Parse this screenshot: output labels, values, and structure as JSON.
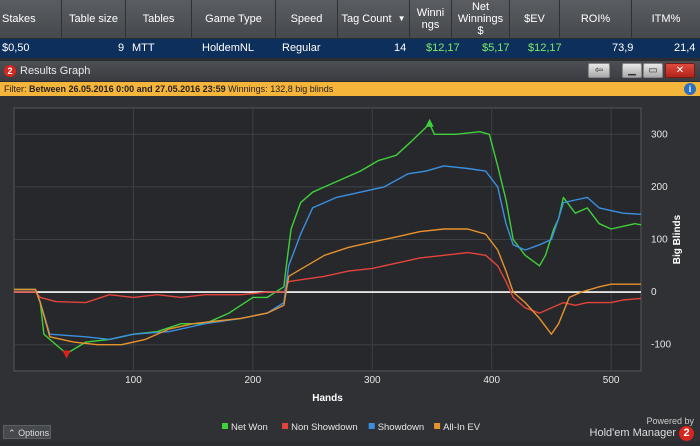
{
  "grid_header": {
    "columns": [
      {
        "label": "Stakes"
      },
      {
        "label": "Table size"
      },
      {
        "label": "Tables"
      },
      {
        "label": "Game Type"
      },
      {
        "label": "Speed"
      },
      {
        "label": "Tag Count"
      },
      {
        "label": "Winnings"
      },
      {
        "label": "Net Winnings $"
      },
      {
        "label": "$EV"
      },
      {
        "label": "ROI%"
      },
      {
        "label": "ITM%"
      }
    ],
    "sort_icon": "sort-desc-triangle"
  },
  "grid_row": {
    "stakes": "$0,50",
    "table_size": "9",
    "tables": "MTT",
    "game_type": "HoldemNL",
    "speed": "Regular",
    "tag_count": "14",
    "winnings": "$12,17",
    "net_winnings": "$5,17",
    "ev": "$12,17",
    "roi": "73,9",
    "itm": "21,4"
  },
  "window": {
    "title": "Results Graph",
    "logo": "2",
    "buttons": {
      "back": "⇦",
      "minimize": "▁",
      "maximize": "▭",
      "close": "✕"
    }
  },
  "filter": {
    "prefix": "Filter:",
    "text": "Between 26.05.2016 0:00 and 27.05.2016 23:59",
    "winnings": "Winnings: 132,8 big blinds",
    "info_icon": "i"
  },
  "chart_data": {
    "type": "line",
    "xlabel": "Hands",
    "ylabel": "Big Blinds",
    "xlim": [
      0,
      525
    ],
    "ylim": [
      -150,
      350
    ],
    "xticks": [
      100,
      200,
      300,
      400,
      500
    ],
    "yticks": [
      300,
      200,
      100,
      0,
      -100
    ],
    "grid": true,
    "legend_position": "bottom-center",
    "markers": {
      "max": {
        "x": 348,
        "y": 320,
        "color": "#3fd13a"
      },
      "min": {
        "x": 44,
        "y": -117,
        "color": "#e0201a"
      }
    },
    "series": [
      {
        "name": "Net Won",
        "color": "#3fd13a",
        "points": [
          [
            0,
            5
          ],
          [
            18,
            5
          ],
          [
            22,
            -20
          ],
          [
            25,
            -80
          ],
          [
            30,
            -90
          ],
          [
            44,
            -117
          ],
          [
            60,
            -95
          ],
          [
            80,
            -90
          ],
          [
            100,
            -80
          ],
          [
            120,
            -75
          ],
          [
            140,
            -60
          ],
          [
            160,
            -60
          ],
          [
            180,
            -40
          ],
          [
            200,
            -10
          ],
          [
            212,
            -10
          ],
          [
            226,
            10
          ],
          [
            228,
            50
          ],
          [
            232,
            120
          ],
          [
            240,
            170
          ],
          [
            250,
            190
          ],
          [
            260,
            200
          ],
          [
            275,
            215
          ],
          [
            290,
            230
          ],
          [
            305,
            250
          ],
          [
            320,
            260
          ],
          [
            332,
            285
          ],
          [
            348,
            320
          ],
          [
            352,
            300
          ],
          [
            370,
            300
          ],
          [
            390,
            305
          ],
          [
            398,
            300
          ],
          [
            405,
            240
          ],
          [
            412,
            175
          ],
          [
            418,
            100
          ],
          [
            428,
            70
          ],
          [
            440,
            50
          ],
          [
            445,
            70
          ],
          [
            452,
            120
          ],
          [
            456,
            140
          ],
          [
            460,
            180
          ],
          [
            470,
            150
          ],
          [
            480,
            160
          ],
          [
            490,
            130
          ],
          [
            500,
            120
          ],
          [
            510,
            125
          ],
          [
            520,
            130
          ],
          [
            525,
            128
          ]
        ]
      },
      {
        "name": "Non Showdown",
        "color": "#e4443c",
        "points": [
          [
            0,
            0
          ],
          [
            18,
            0
          ],
          [
            22,
            -10
          ],
          [
            35,
            -18
          ],
          [
            60,
            -20
          ],
          [
            80,
            -5
          ],
          [
            100,
            -10
          ],
          [
            120,
            -5
          ],
          [
            140,
            -10
          ],
          [
            160,
            -5
          ],
          [
            190,
            -5
          ],
          [
            212,
            0
          ],
          [
            226,
            0
          ],
          [
            230,
            20
          ],
          [
            245,
            25
          ],
          [
            260,
            30
          ],
          [
            280,
            40
          ],
          [
            300,
            45
          ],
          [
            320,
            55
          ],
          [
            340,
            65
          ],
          [
            360,
            70
          ],
          [
            380,
            75
          ],
          [
            395,
            70
          ],
          [
            405,
            50
          ],
          [
            412,
            20
          ],
          [
            418,
            -10
          ],
          [
            428,
            -30
          ],
          [
            440,
            -40
          ],
          [
            450,
            -30
          ],
          [
            460,
            -20
          ],
          [
            470,
            -25
          ],
          [
            480,
            -20
          ],
          [
            500,
            -20
          ],
          [
            510,
            -15
          ],
          [
            525,
            -12
          ]
        ]
      },
      {
        "name": "Showdown",
        "color": "#3b8fe0",
        "points": [
          [
            0,
            5
          ],
          [
            18,
            5
          ],
          [
            22,
            -20
          ],
          [
            30,
            -80
          ],
          [
            60,
            -85
          ],
          [
            80,
            -90
          ],
          [
            100,
            -80
          ],
          [
            130,
            -75
          ],
          [
            160,
            -60
          ],
          [
            190,
            -50
          ],
          [
            212,
            -40
          ],
          [
            226,
            -20
          ],
          [
            230,
            50
          ],
          [
            240,
            110
          ],
          [
            250,
            160
          ],
          [
            270,
            180
          ],
          [
            290,
            190
          ],
          [
            310,
            200
          ],
          [
            330,
            225
          ],
          [
            345,
            230
          ],
          [
            360,
            240
          ],
          [
            380,
            235
          ],
          [
            395,
            230
          ],
          [
            405,
            200
          ],
          [
            412,
            130
          ],
          [
            418,
            90
          ],
          [
            428,
            80
          ],
          [
            440,
            90
          ],
          [
            450,
            100
          ],
          [
            456,
            140
          ],
          [
            460,
            170
          ],
          [
            470,
            175
          ],
          [
            480,
            180
          ],
          [
            490,
            160
          ],
          [
            500,
            155
          ],
          [
            510,
            150
          ],
          [
            525,
            148
          ]
        ]
      },
      {
        "name": "All-In EV",
        "color": "#e8922e",
        "points": [
          [
            0,
            5
          ],
          [
            18,
            5
          ],
          [
            22,
            -20
          ],
          [
            30,
            -85
          ],
          [
            50,
            -95
          ],
          [
            70,
            -100
          ],
          [
            90,
            -100
          ],
          [
            110,
            -90
          ],
          [
            130,
            -70
          ],
          [
            150,
            -60
          ],
          [
            170,
            -55
          ],
          [
            190,
            -50
          ],
          [
            212,
            -40
          ],
          [
            226,
            -25
          ],
          [
            230,
            30
          ],
          [
            245,
            50
          ],
          [
            260,
            70
          ],
          [
            280,
            85
          ],
          [
            300,
            95
          ],
          [
            320,
            105
          ],
          [
            340,
            115
          ],
          [
            360,
            120
          ],
          [
            380,
            120
          ],
          [
            395,
            110
          ],
          [
            405,
            80
          ],
          [
            412,
            40
          ],
          [
            418,
            0
          ],
          [
            428,
            -20
          ],
          [
            440,
            -50
          ],
          [
            450,
            -80
          ],
          [
            456,
            -60
          ],
          [
            465,
            -10
          ],
          [
            475,
            0
          ],
          [
            490,
            10
          ],
          [
            500,
            15
          ],
          [
            510,
            15
          ],
          [
            525,
            15
          ]
        ]
      }
    ]
  },
  "footer": {
    "options_label": "Options",
    "powered_by": "Powered by",
    "brand_name": "Hold'em Manager",
    "brand_logo": "2"
  }
}
